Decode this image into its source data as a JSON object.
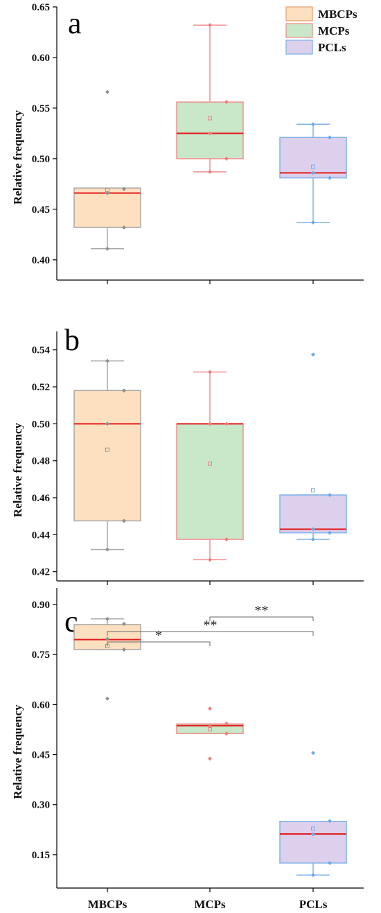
{
  "chart_data": [
    {
      "type": "box",
      "panel": "a",
      "ylabel": "Relative frequency",
      "ylim": [
        0.38,
        0.65
      ],
      "yticks": [
        "0.40",
        "0.45",
        "0.50",
        "0.55",
        "0.60",
        "0.65"
      ],
      "categories": [
        "MBCPs",
        "MCPs",
        "PCLs"
      ],
      "boxes": [
        {
          "name": "MBCPs",
          "whisker_low": 0.411,
          "q1": 0.432,
          "median": 0.466,
          "q3": 0.471,
          "whisker_high": 0.471,
          "mean": 0.469,
          "points": [
            0.566,
            0.47,
            0.466,
            0.432,
            0.411
          ],
          "outliers": [
            0.566
          ]
        },
        {
          "name": "MCPs",
          "whisker_low": 0.487,
          "q1": 0.5,
          "median": 0.525,
          "q3": 0.556,
          "whisker_high": 0.632,
          "mean": 0.54,
          "points": [
            0.632,
            0.556,
            0.525,
            0.5,
            0.487
          ],
          "outliers": []
        },
        {
          "name": "PCLs",
          "whisker_low": 0.437,
          "q1": 0.481,
          "median": 0.486,
          "q3": 0.521,
          "whisker_high": 0.534,
          "mean": 0.492,
          "points": [
            0.534,
            0.521,
            0.486,
            0.481,
            0.437
          ],
          "outliers": []
        }
      ]
    },
    {
      "type": "box",
      "panel": "b",
      "ylabel": "Relative frequency",
      "ylim": [
        0.415,
        0.55
      ],
      "yticks": [
        "0.42",
        "0.44",
        "0.46",
        "0.48",
        "0.50",
        "0.52",
        "0.54"
      ],
      "categories": [
        "MBCPs",
        "MCPs",
        "PCLs"
      ],
      "boxes": [
        {
          "name": "MBCPs",
          "whisker_low": 0.432,
          "q1": 0.4475,
          "median": 0.5,
          "q3": 0.518,
          "whisker_high": 0.534,
          "mean": 0.486,
          "points": [
            0.534,
            0.518,
            0.5,
            0.4475,
            0.432
          ],
          "outliers": []
        },
        {
          "name": "MCPs",
          "whisker_low": 0.4265,
          "q1": 0.4375,
          "median": 0.5,
          "q3": 0.5,
          "whisker_high": 0.528,
          "mean": 0.4785,
          "points": [
            0.528,
            0.5,
            0.5,
            0.4375,
            0.4265
          ],
          "outliers": []
        },
        {
          "name": "PCLs",
          "whisker_low": 0.4375,
          "q1": 0.441,
          "median": 0.443,
          "q3": 0.4615,
          "whisker_high": 0.4615,
          "mean": 0.464,
          "points": [
            0.5375,
            0.4615,
            0.443,
            0.441,
            0.4375
          ],
          "outliers": [
            0.5375
          ]
        }
      ]
    },
    {
      "type": "box",
      "panel": "c",
      "ylabel": "Relative frequency",
      "xlabels": [
        "MBCPs",
        "MCPs",
        "PCLs"
      ],
      "ylim": [
        0.05,
        0.95
      ],
      "yticks": [
        "0.15",
        "0.30",
        "0.45",
        "0.60",
        "0.75",
        "0.90"
      ],
      "categories": [
        "MBCPs",
        "MCPs",
        "PCLs"
      ],
      "boxes": [
        {
          "name": "MBCPs",
          "whisker_low": 0.765,
          "q1": 0.765,
          "median": 0.795,
          "q3": 0.84,
          "whisker_high": 0.857,
          "mean": 0.776,
          "points": [
            0.857,
            0.842,
            0.797,
            0.765,
            0.618
          ],
          "outliers": [
            0.618
          ]
        },
        {
          "name": "MCPs",
          "whisker_low": 0.513,
          "q1": 0.513,
          "median": 0.537,
          "q3": 0.542,
          "whisker_high": 0.542,
          "mean": 0.526,
          "points": [
            0.588,
            0.543,
            0.535,
            0.513,
            0.438
          ],
          "outliers": [
            0.588,
            0.438
          ]
        },
        {
          "name": "PCLs",
          "whisker_low": 0.089,
          "q1": 0.125,
          "median": 0.212,
          "q3": 0.25,
          "whisker_high": 0.25,
          "mean": 0.228,
          "points": [
            0.455,
            0.251,
            0.211,
            0.125,
            0.089
          ],
          "outliers": [
            0.455
          ]
        }
      ],
      "significance": [
        {
          "from": "MBCPs",
          "to": "MCPs",
          "label": "*"
        },
        {
          "from": "MBCPs",
          "to": "PCLs",
          "label": "**"
        },
        {
          "from": "MCPs",
          "to": "PCLs",
          "label": "**"
        }
      ]
    }
  ],
  "legend": {
    "placement": "top-right",
    "items": [
      {
        "label": "MBCPs",
        "fill": "#fde0c0",
        "stroke": "#e8a37a"
      },
      {
        "label": "MCPs",
        "fill": "#c9e7c9",
        "stroke": "#ef8f8f"
      },
      {
        "label": "PCLs",
        "fill": "#ddd0ec",
        "stroke": "#7fb3ea"
      }
    ]
  },
  "colors": {
    "median": "#e21d1d",
    "MBCPs": {
      "fill": "#fde0c0",
      "stroke": "#a8a8a8",
      "point": "#8f8f8f"
    },
    "MCPs": {
      "fill": "#c9e7c9",
      "stroke": "#ef8f8f",
      "point": "#f07c7c"
    },
    "PCLs": {
      "fill": "#ddd0ec",
      "stroke": "#7fb3ea",
      "point": "#6fa8e6"
    }
  }
}
